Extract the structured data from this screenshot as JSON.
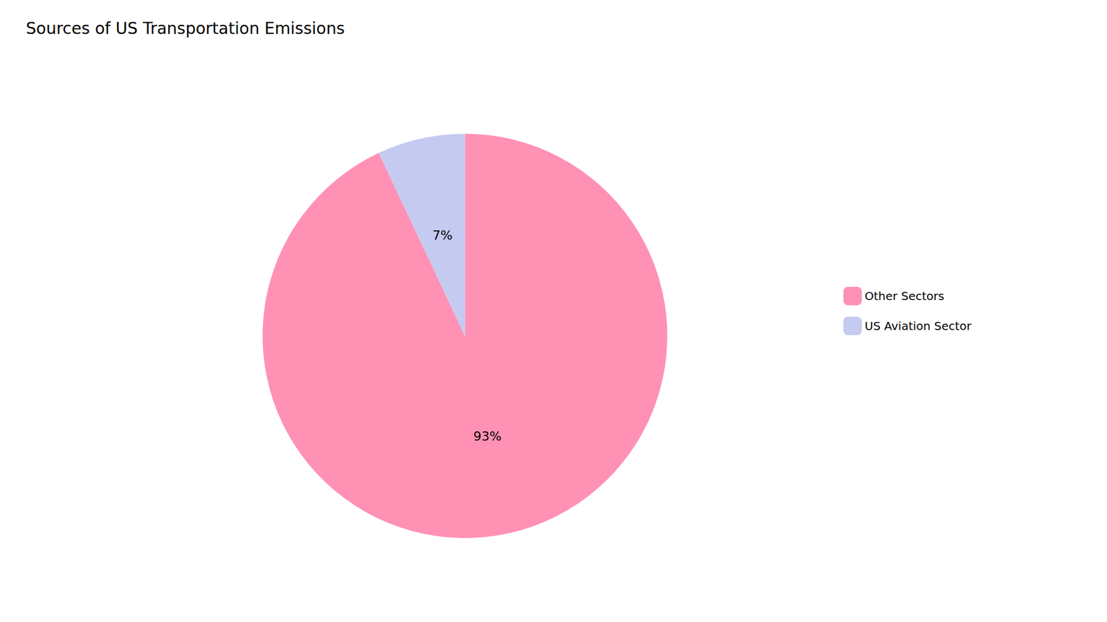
{
  "chart_data": {
    "type": "pie",
    "title": "Sources of US Transportation Emissions",
    "categories": [
      "Other Sectors",
      "US Aviation Sector"
    ],
    "values": [
      93,
      7
    ],
    "value_labels": [
      "93%",
      "7%"
    ],
    "colors": [
      "#FF91B4",
      "#C5CAF0"
    ],
    "data_labels": true,
    "legend": "right"
  }
}
